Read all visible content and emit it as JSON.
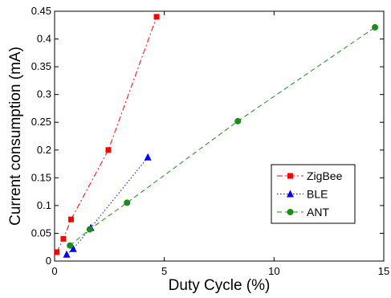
{
  "chart_data": {
    "type": "line",
    "xlabel": "Duty Cycle (%)",
    "ylabel": "Current consumption (mA)",
    "xlim": [
      0,
      15
    ],
    "ylim": [
      0,
      0.45
    ],
    "xticks": [
      "0",
      "5",
      "10",
      "15"
    ],
    "yticks": [
      "0",
      "0.05",
      "0.1",
      "0.15",
      "0.2",
      "0.25",
      "0.3",
      "0.35",
      "0.4",
      "0.45"
    ],
    "grid": false,
    "legend_position": "right, lower-middle",
    "series": [
      {
        "name": "ZigBee",
        "color": "#ff0000",
        "marker": "square",
        "line_style": "dash-dot",
        "x": [
          0.1,
          0.4,
          0.75,
          2.45,
          4.65
        ],
        "y": [
          0.016,
          0.04,
          0.075,
          0.2,
          0.44
        ]
      },
      {
        "name": "BLE",
        "color": "#0000ff",
        "marker": "triangle",
        "line_style": "dotted",
        "x": [
          0.55,
          0.85,
          1.65,
          4.25
        ],
        "y": [
          0.012,
          0.022,
          0.06,
          0.187
        ]
      },
      {
        "name": "ANT",
        "color": "#1a8c1a",
        "marker": "circle",
        "line_style": "dashed",
        "x": [
          0.7,
          1.6,
          3.3,
          8.35,
          14.6
        ],
        "y": [
          0.028,
          0.057,
          0.105,
          0.252,
          0.421
        ]
      }
    ]
  }
}
